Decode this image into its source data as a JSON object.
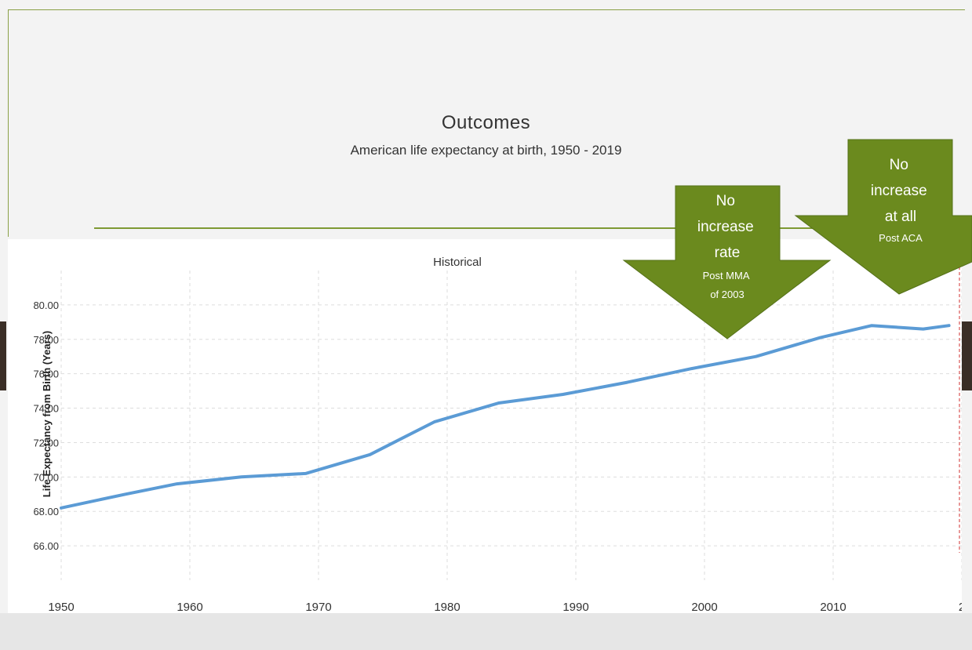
{
  "slide": {
    "title": "Outcomes",
    "subtitle": "American life expectancy at birth, 1950 - 2019",
    "accent_color": "#7e9a33",
    "arrow_color": "#6b8a1e",
    "line_color": "#5b9bd5"
  },
  "annotations": [
    {
      "main": "No increase rate",
      "sub": "Post MMA of 2003"
    },
    {
      "main": "No increase at all",
      "sub": "Post ACA"
    }
  ],
  "chart_data": {
    "type": "line",
    "region_label": "Historical",
    "ylabel": "Life Expectancy from Birth (Years)",
    "x_ticks": [
      "1950",
      "1960",
      "1970",
      "1980",
      "1990",
      "2000",
      "2010",
      "2"
    ],
    "y_ticks": [
      "66.00",
      "68.00",
      "70.00",
      "72.00",
      "74.00",
      "76.00",
      "78.00",
      "80.00"
    ],
    "xlim": [
      1950,
      2020
    ],
    "ylim": [
      64,
      82
    ],
    "grid": true,
    "series": [
      {
        "x": [
          1950,
          1955,
          1959,
          1964,
          1969,
          1974,
          1979,
          1984,
          1989,
          1994,
          1999,
          2004,
          2009,
          2013,
          2017,
          2019
        ],
        "y": [
          68.2,
          69.0,
          69.6,
          70.0,
          70.2,
          71.3,
          73.2,
          74.3,
          74.8,
          75.5,
          76.3,
          77.0,
          78.1,
          78.8,
          78.6,
          78.8
        ]
      }
    ]
  }
}
